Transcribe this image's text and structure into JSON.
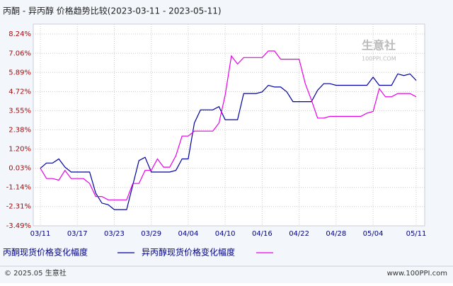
{
  "chart_data": {
    "type": "line",
    "title": "丙酮 - 异丙醇 价格趋势比较(2023-03-11 - 2023-05-11)",
    "watermark": "生意社",
    "watermark_sub": "100PPI.COM",
    "footer_left": "© 2025.05 生意社",
    "footer_right": "www.100PPI.com",
    "categories": [
      "03/11",
      null,
      null,
      null,
      null,
      null,
      "03/17",
      null,
      null,
      null,
      null,
      null,
      "03/23",
      null,
      null,
      null,
      null,
      null,
      "03/29",
      null,
      null,
      null,
      null,
      null,
      "04/04",
      null,
      null,
      null,
      null,
      null,
      "04/10",
      null,
      null,
      null,
      null,
      null,
      "04/16",
      null,
      null,
      null,
      null,
      null,
      "04/22",
      null,
      null,
      null,
      null,
      null,
      "04/28",
      null,
      null,
      null,
      null,
      null,
      "05/04",
      null,
      null,
      null,
      null,
      null,
      null,
      "05/11"
    ],
    "series": [
      {
        "name": "丙酮现货价格变化幅度",
        "color": "#0000a0",
        "values": [
          0.03,
          0.35,
          0.35,
          0.6,
          0.1,
          -0.2,
          -0.2,
          -0.2,
          -0.2,
          -1.5,
          -2.1,
          -2.2,
          -2.5,
          -2.5,
          -2.5,
          -1.0,
          0.5,
          0.7,
          -0.2,
          -0.2,
          -0.2,
          -0.2,
          -0.1,
          0.6,
          0.6,
          2.8,
          3.6,
          3.6,
          3.6,
          3.8,
          3.0,
          3.0,
          3.0,
          4.6,
          4.6,
          4.6,
          4.7,
          5.1,
          5.0,
          5.0,
          4.7,
          4.1,
          4.1,
          4.1,
          4.1,
          4.8,
          5.2,
          5.2,
          5.1,
          5.1,
          5.1,
          5.1,
          5.1,
          5.1,
          5.6,
          5.1,
          5.1,
          5.1,
          5.8,
          5.7,
          5.8,
          5.4
        ]
      },
      {
        "name": "异丙醇现货价格变化幅度",
        "color": "#e800e8",
        "values": [
          0.03,
          -0.6,
          -0.6,
          -0.7,
          -0.1,
          -0.6,
          -0.6,
          -0.6,
          -0.9,
          -1.7,
          -1.7,
          -1.9,
          -1.9,
          -1.9,
          -1.9,
          -0.9,
          -0.9,
          -0.1,
          -0.1,
          0.6,
          0.1,
          0.1,
          0.8,
          2.0,
          2.0,
          2.3,
          2.3,
          2.3,
          2.3,
          2.8,
          4.5,
          6.9,
          6.4,
          6.8,
          6.8,
          6.8,
          6.8,
          7.2,
          7.2,
          6.7,
          6.7,
          6.7,
          6.7,
          5.2,
          4.2,
          3.1,
          3.1,
          3.2,
          3.2,
          3.2,
          3.2,
          3.2,
          3.2,
          3.4,
          3.5,
          4.9,
          4.4,
          4.4,
          4.6,
          4.6,
          4.6,
          4.4
        ]
      }
    ],
    "ylim": [
      -3.49,
      8.24
    ],
    "yticks": [
      {
        "value": 8.24,
        "label": "8.24%"
      },
      {
        "value": 7.06,
        "label": "7.06%"
      },
      {
        "value": 5.89,
        "label": "5.89%"
      },
      {
        "value": 4.72,
        "label": "4.72%"
      },
      {
        "value": 3.55,
        "label": "3.55%"
      },
      {
        "value": 2.38,
        "label": "2.38%"
      },
      {
        "value": 1.2,
        "label": "1.20%"
      },
      {
        "value": 0.03,
        "label": "0.03%"
      },
      {
        "value": -1.14,
        "label": "-1.14%"
      },
      {
        "value": -2.31,
        "label": "-2.31%"
      },
      {
        "value": -3.49,
        "label": "-3.49%"
      }
    ],
    "grid": true
  }
}
